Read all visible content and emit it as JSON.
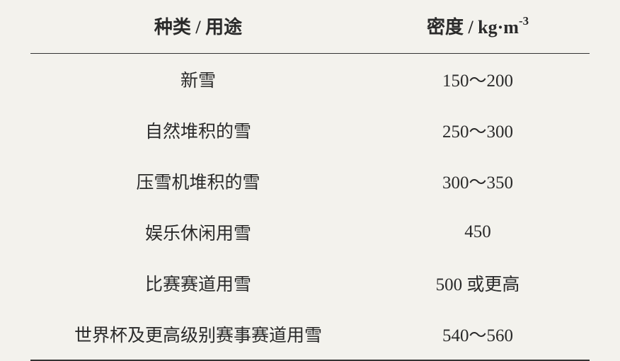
{
  "table": {
    "headers": {
      "type": "种类 / 用途",
      "density_prefix": "密度 / kg·m",
      "density_exponent": "-3"
    },
    "rows": [
      {
        "type": "新雪",
        "density": "150～200"
      },
      {
        "type": "自然堆积的雪",
        "density": "250～300"
      },
      {
        "type": "压雪机堆积的雪",
        "density": "300～350"
      },
      {
        "type": "娱乐休闲用雪",
        "density": "450"
      },
      {
        "type": "比赛赛道用雪",
        "density": "500 或更高"
      },
      {
        "type": "世界杯及更高级别赛事赛道用雪",
        "density": "540～560"
      }
    ],
    "styling": {
      "background_color": "#f3f2ed",
      "text_color": "#2a2a2a",
      "border_color": "#333333",
      "header_font_size": 26,
      "body_font_size": 25,
      "header_border_top_width": 2,
      "header_border_bottom_width": 1.5,
      "footer_border_width": 2,
      "row_padding_vertical": 18,
      "header_padding_vertical": 20,
      "font_family": "SimSun, serif"
    }
  }
}
